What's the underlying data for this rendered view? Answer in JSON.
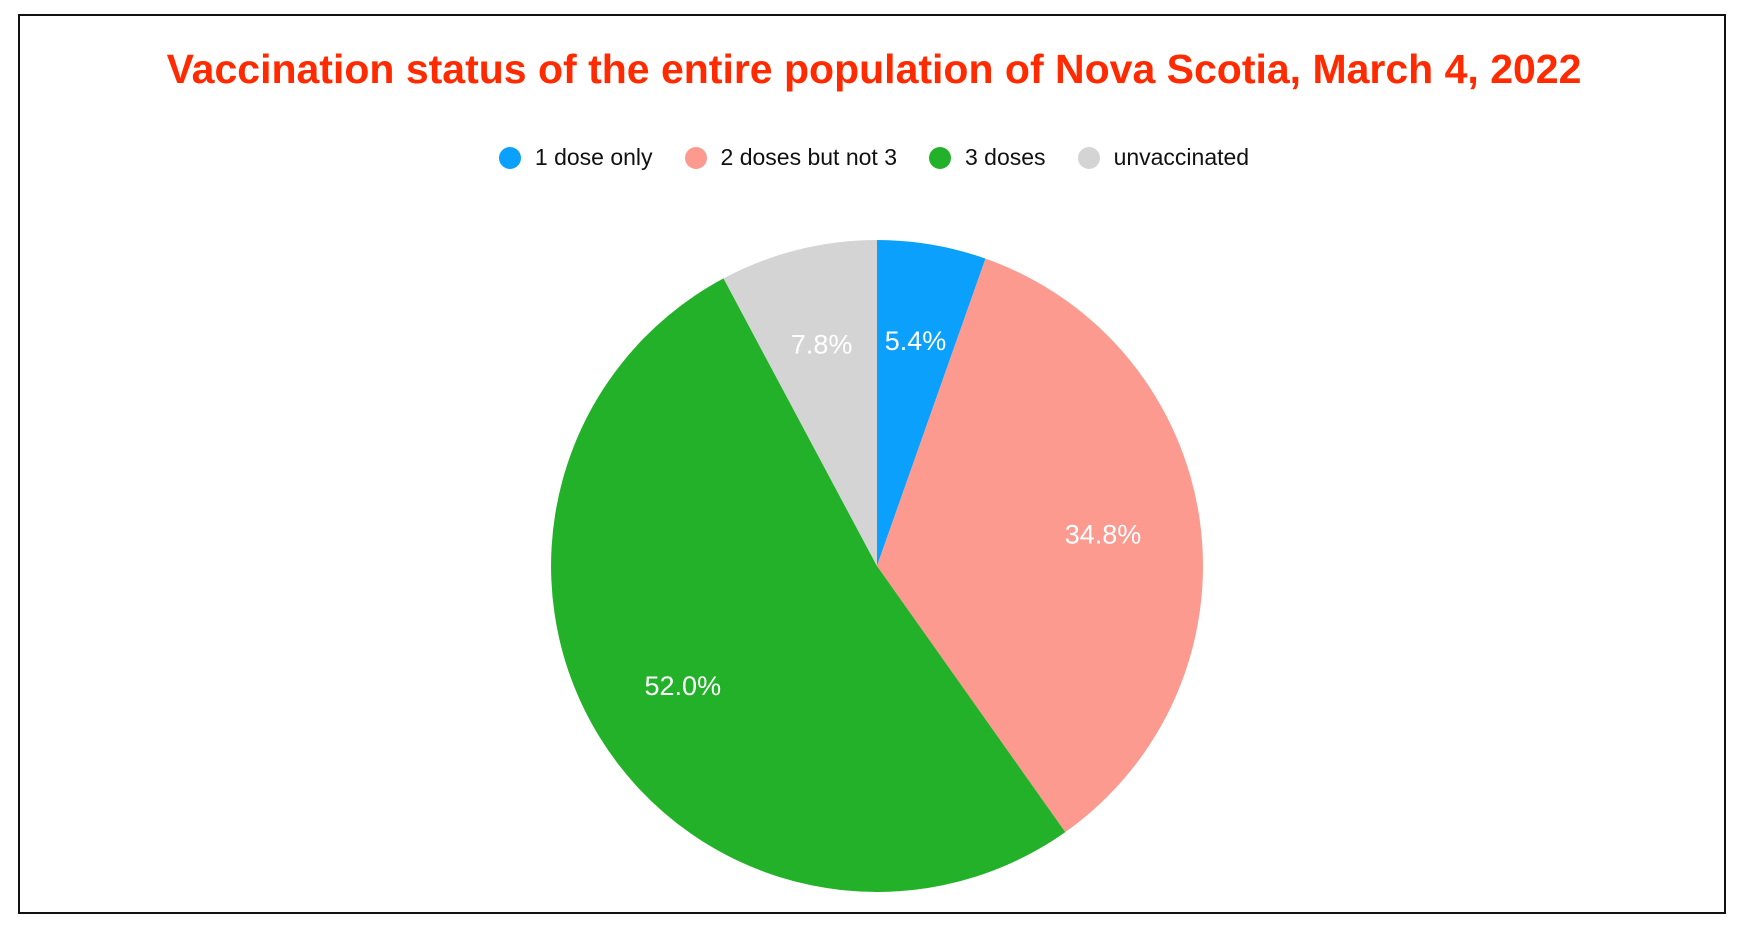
{
  "chart_data": {
    "type": "pie",
    "title": "Vaccination status of the entire population of Nova Scotia, March 4, 2022",
    "title_color": "#ff2a00",
    "legend_position": "top",
    "categories": [
      "1 dose only",
      "2 doses but not 3",
      "3 doses",
      "unvaccinated"
    ],
    "values": [
      5.4,
      34.8,
      52.0,
      7.8
    ],
    "value_labels": [
      "5.4%",
      "34.8%",
      "52.0%",
      "7.8%"
    ],
    "colors": [
      "#0ba0fc",
      "#fc9a90",
      "#23b129",
      "#d4d4d4"
    ]
  }
}
